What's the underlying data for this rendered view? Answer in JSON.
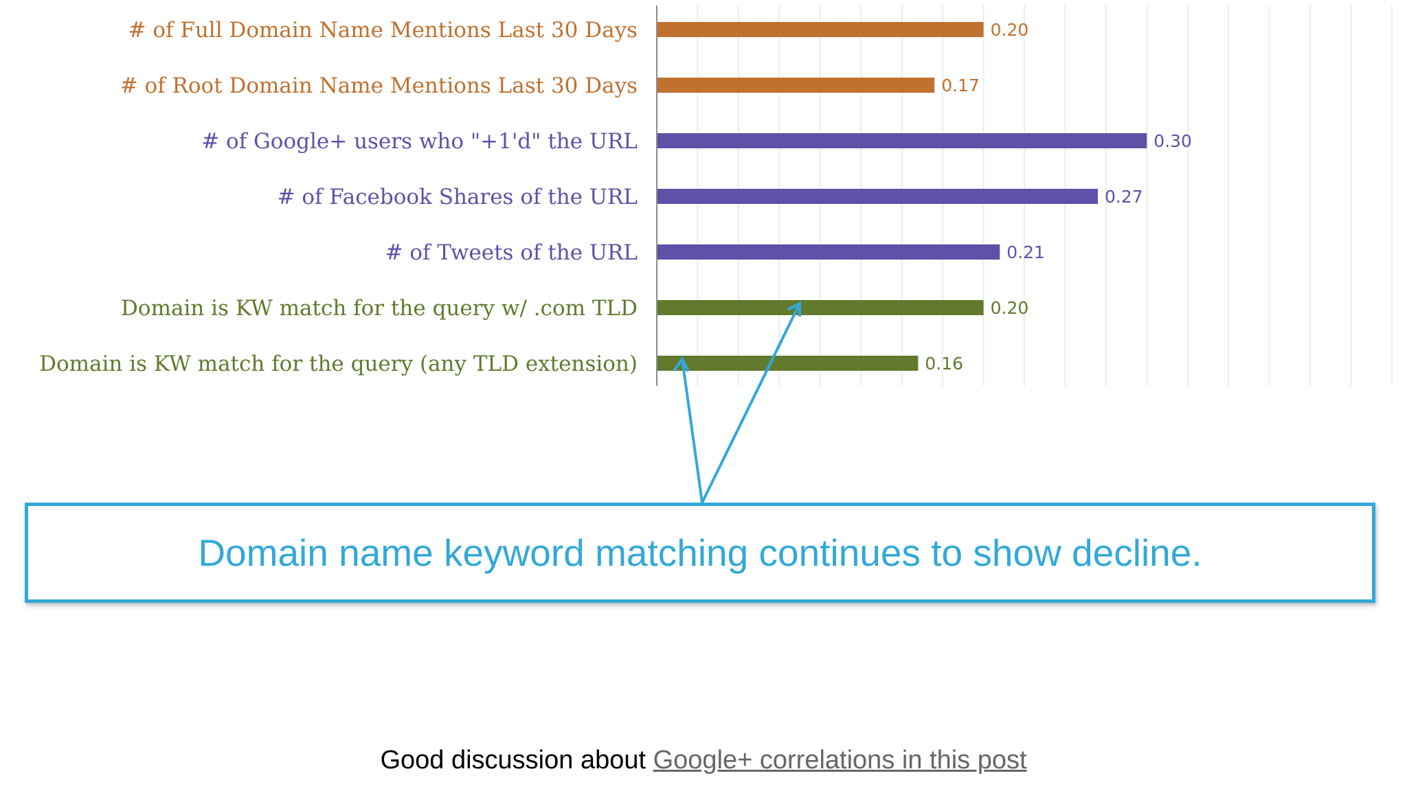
{
  "chart_data": {
    "type": "bar",
    "orientation": "horizontal",
    "categories": [
      "# of Full Domain Name Mentions Last 30 Days",
      "# of Root Domain Name Mentions Last 30 Days",
      "# of Google+ users who \"+1'd\" the URL",
      "# of Facebook Shares of the URL",
      "# of Tweets of the URL",
      "Domain is KW match for the query w/ .com TLD",
      "Domain is KW match for the query (any TLD extension)"
    ],
    "values": [
      0.2,
      0.17,
      0.3,
      0.27,
      0.21,
      0.2,
      0.16
    ],
    "value_labels": [
      "0.20",
      "0.17",
      "0.30",
      "0.27",
      "0.21",
      "0.20",
      "0.16"
    ],
    "bar_colors": [
      "#c0702f",
      "#c0702f",
      "#5f50a8",
      "#5f50a8",
      "#5f50a8",
      "#617a2d",
      "#617a2d"
    ],
    "label_colors": [
      "#c0702f",
      "#c0702f",
      "#5f50a8",
      "#5f50a8",
      "#5f50a8",
      "#617a2d",
      "#617a2d"
    ],
    "xlim": [
      0,
      0.45
    ],
    "grid": true,
    "title": "",
    "xlabel": "",
    "ylabel": ""
  },
  "callout": {
    "text": "Domain name keyword matching continues to show decline.",
    "color": "#33a8d8"
  },
  "footer": {
    "text": "Good discussion about ",
    "link_text": "Google+ correlations in this post"
  }
}
